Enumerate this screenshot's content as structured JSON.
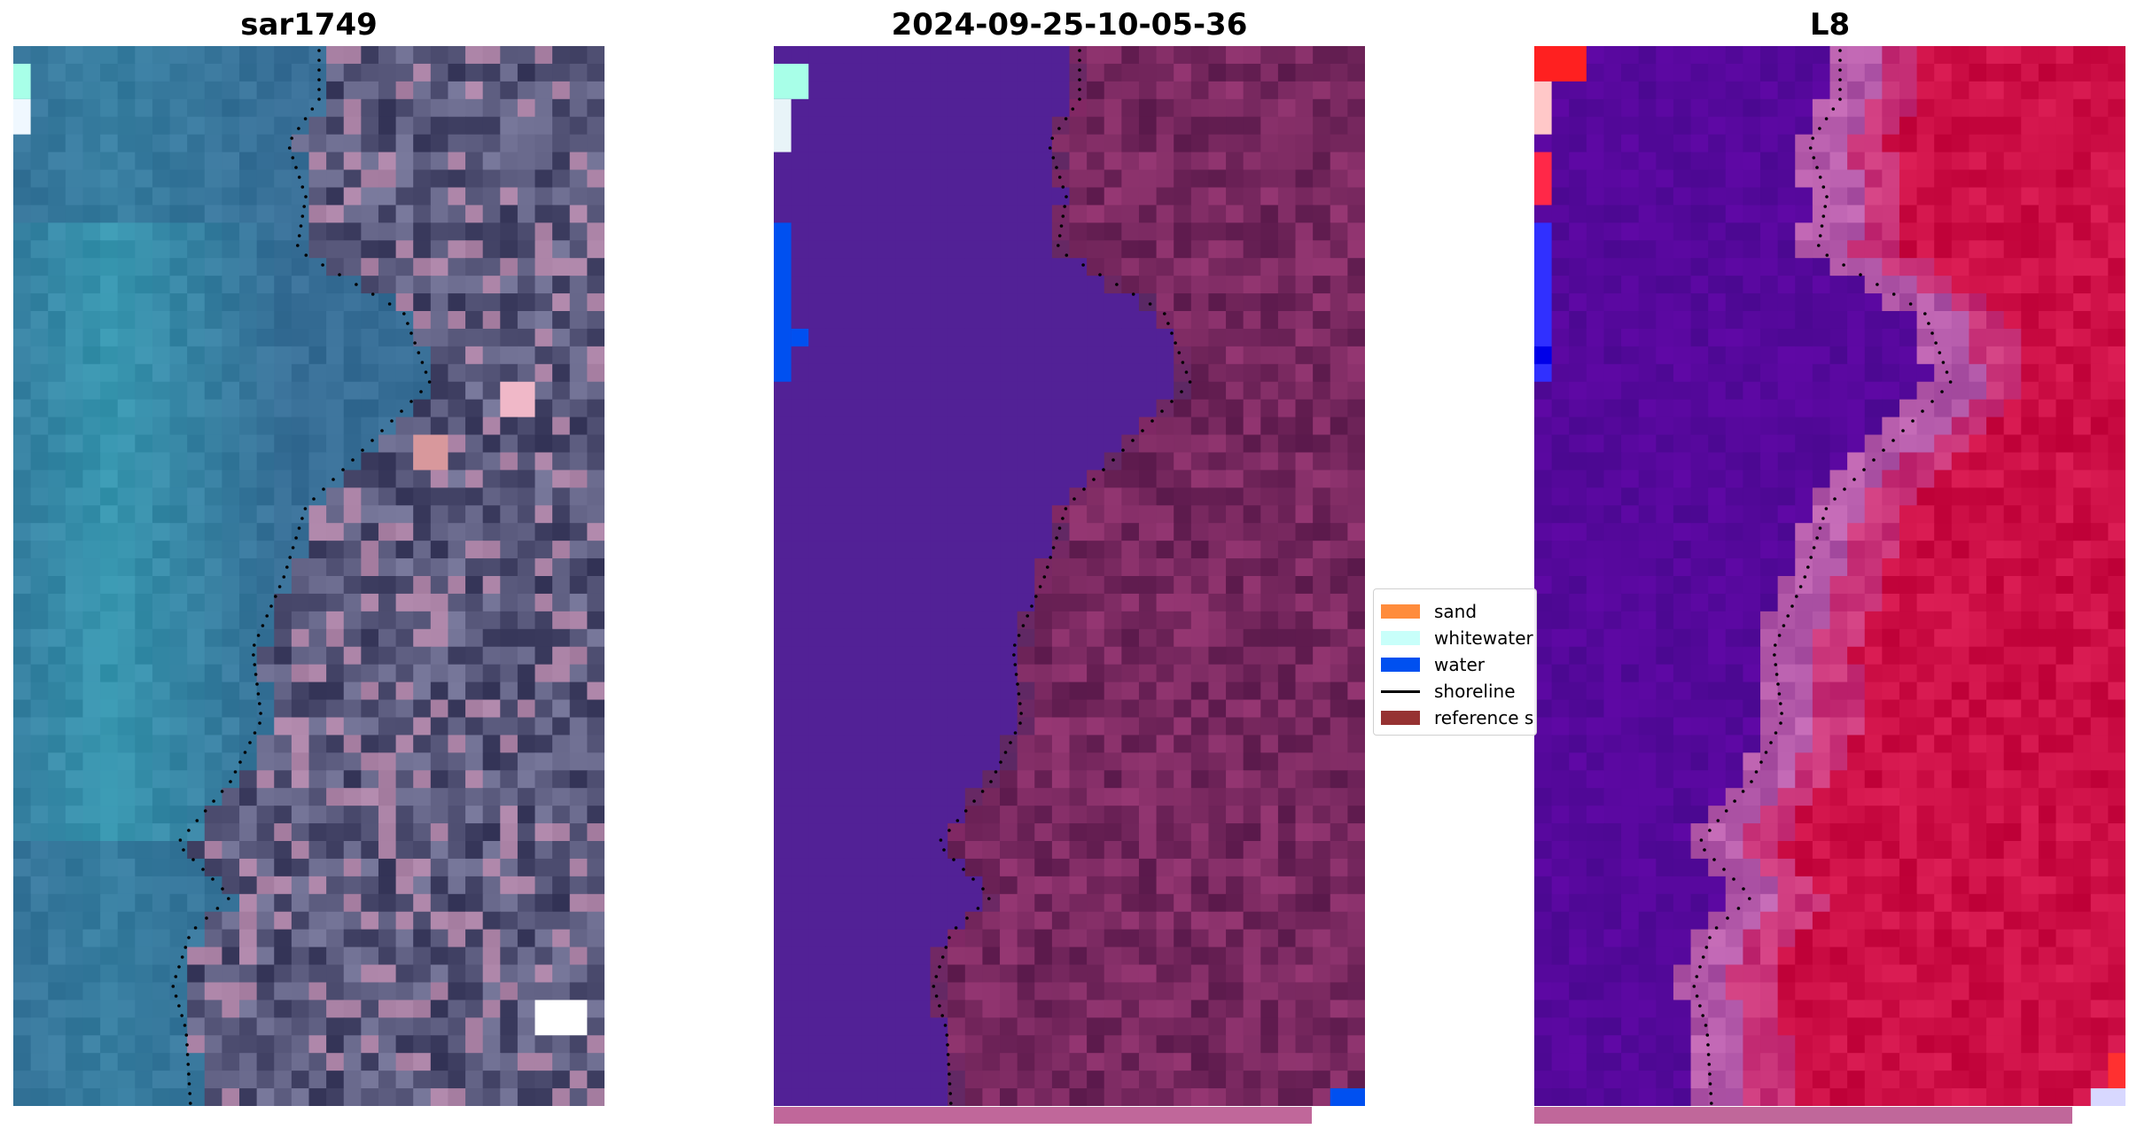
{
  "panels": [
    {
      "title": "sar1749",
      "kind": "rgb"
    },
    {
      "title": "2024-09-25-10-05-36",
      "kind": "classified"
    },
    {
      "title": "L8",
      "kind": "index"
    }
  ],
  "legend": {
    "items": [
      {
        "label": "sand",
        "color": "#ff8c3c",
        "type": "patch"
      },
      {
        "label": "whitewater",
        "color": "#c8fffa",
        "type": "patch"
      },
      {
        "label": "water",
        "color": "#0050f0",
        "type": "patch"
      },
      {
        "label": "shoreline",
        "color": "#000000",
        "type": "line"
      },
      {
        "label": "reference s",
        "color": "#963232",
        "type": "patch"
      }
    ]
  },
  "colors": {
    "water_class": "#522196",
    "land_tint": "#7a2a5e",
    "index_water": "#5a0aa0",
    "index_land": "#c8104a",
    "progress_bar": "#c0679a"
  },
  "progress": {
    "fraction": 0.91
  }
}
